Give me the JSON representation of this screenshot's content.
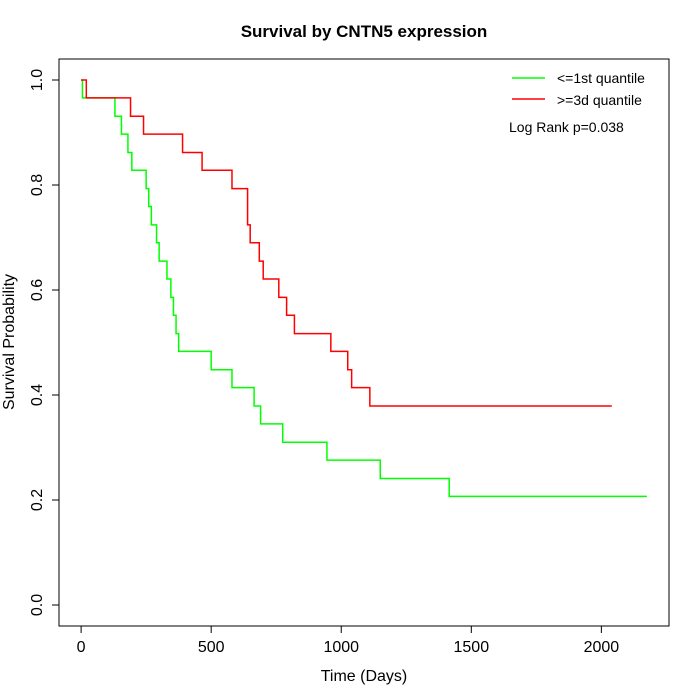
{
  "chart_data": {
    "type": "line",
    "title": "Survival by CNTN5 expression",
    "xlabel": "Time (Days)",
    "ylabel": "Survival Probability",
    "xlim": [
      -85,
      2260
    ],
    "ylim": [
      -0.04,
      1.04
    ],
    "x_ticks": [
      0,
      500,
      1000,
      1500,
      2000
    ],
    "y_ticks": [
      0.0,
      0.2,
      0.4,
      0.6,
      0.8,
      1.0
    ],
    "x_tick_labels": [
      "0",
      "500",
      "1000",
      "1500",
      "2000"
    ],
    "y_tick_labels": [
      "0.0",
      "0.2",
      "0.4",
      "0.6",
      "0.8",
      "1.0"
    ],
    "grid": false,
    "legend_position": "top-right",
    "annotation": "Log Rank p=0.038",
    "series": [
      {
        "name": "<=1st quantile",
        "color": "#00ff00",
        "steps": [
          [
            0,
            1.0
          ],
          [
            5,
            0.966
          ],
          [
            130,
            0.931
          ],
          [
            155,
            0.897
          ],
          [
            180,
            0.862
          ],
          [
            195,
            0.828
          ],
          [
            250,
            0.793
          ],
          [
            260,
            0.759
          ],
          [
            270,
            0.724
          ],
          [
            290,
            0.69
          ],
          [
            300,
            0.655
          ],
          [
            330,
            0.621
          ],
          [
            345,
            0.586
          ],
          [
            355,
            0.552
          ],
          [
            365,
            0.517
          ],
          [
            375,
            0.483
          ],
          [
            500,
            0.448
          ],
          [
            580,
            0.414
          ],
          [
            665,
            0.379
          ],
          [
            690,
            0.345
          ],
          [
            775,
            0.31
          ],
          [
            945,
            0.276
          ],
          [
            1150,
            0.241
          ],
          [
            1415,
            0.207
          ],
          [
            2175,
            0.207
          ]
        ]
      },
      {
        "name": ">=3d quantile",
        "color": "#ff0000",
        "steps": [
          [
            0,
            1.0
          ],
          [
            20,
            0.966
          ],
          [
            190,
            0.931
          ],
          [
            240,
            0.897
          ],
          [
            390,
            0.862
          ],
          [
            465,
            0.828
          ],
          [
            580,
            0.793
          ],
          [
            640,
            0.724
          ],
          [
            650,
            0.69
          ],
          [
            685,
            0.655
          ],
          [
            700,
            0.621
          ],
          [
            760,
            0.586
          ],
          [
            790,
            0.552
          ],
          [
            820,
            0.517
          ],
          [
            960,
            0.483
          ],
          [
            1025,
            0.448
          ],
          [
            1040,
            0.414
          ],
          [
            1110,
            0.379
          ],
          [
            2040,
            0.379
          ]
        ]
      }
    ]
  }
}
